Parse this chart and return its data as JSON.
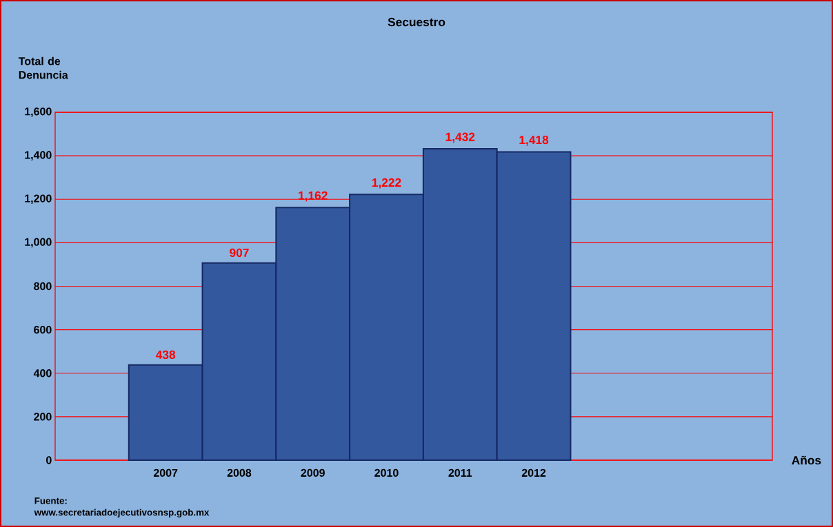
{
  "chart_data": {
    "type": "bar",
    "title": "Secuestro",
    "ylabel": "Total de Denuncia",
    "xlabel": "Años",
    "categories": [
      "2007",
      "2008",
      "2009",
      "2010",
      "2011",
      "2012",
      null,
      null,
      null
    ],
    "values": [
      438,
      907,
      1162,
      1222,
      1432,
      1418,
      null,
      null,
      null
    ],
    "value_labels": [
      "438",
      "907",
      "1,162",
      "1,222",
      "1,432",
      "1,418",
      null,
      null,
      null
    ],
    "color": "#34589e",
    "ylim": [
      0,
      1600
    ],
    "yticks": [
      0,
      200,
      400,
      600,
      800,
      {
        "value": 1000,
        "label": "1,000"
      },
      {
        "value": 1200,
        "label": "1,200"
      },
      {
        "value": 1400,
        "label": "1,400"
      },
      {
        "value": 1600,
        "label": "1,600"
      }
    ],
    "grid": "y",
    "annotations": [
      "Fuente:",
      "www.secretariadoejecutivosnsp.gob.mx"
    ]
  }
}
